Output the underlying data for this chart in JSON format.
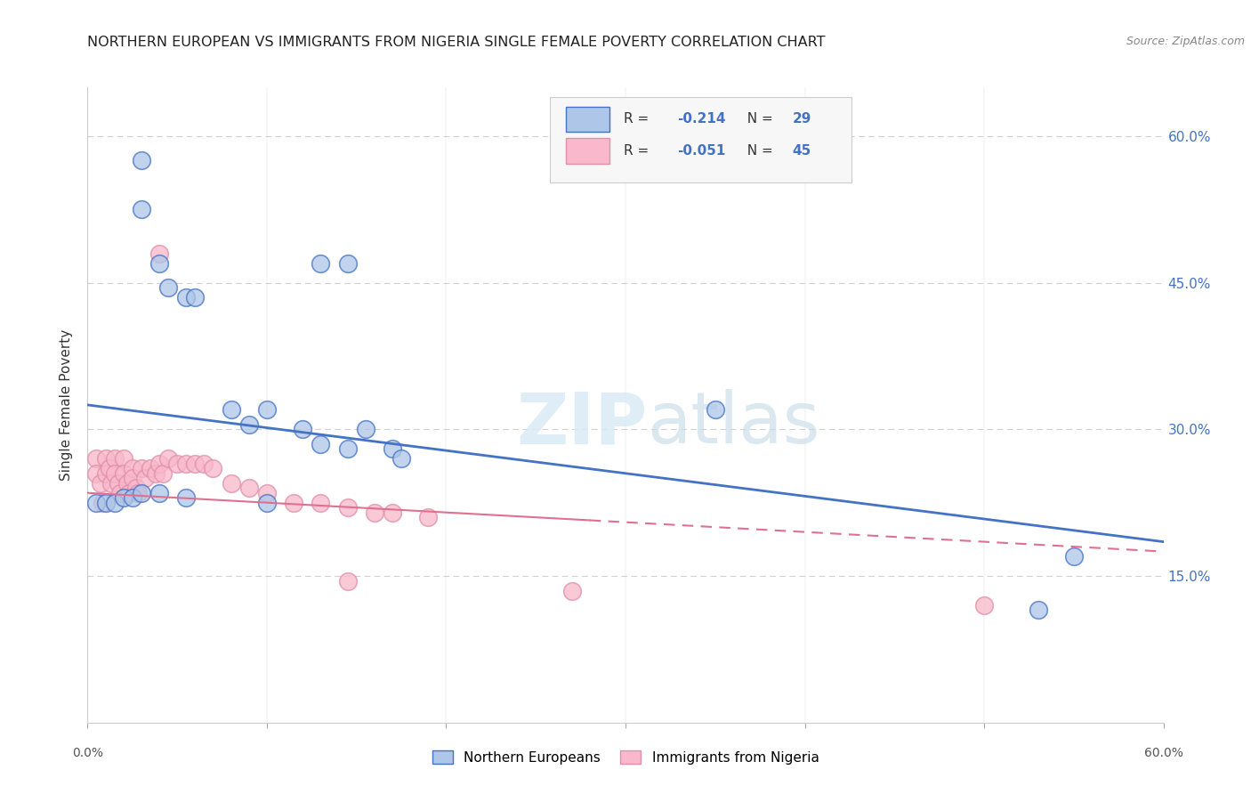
{
  "title": "NORTHERN EUROPEAN VS IMMIGRANTS FROM NIGERIA SINGLE FEMALE POVERTY CORRELATION CHART",
  "source": "Source: ZipAtlas.com",
  "ylabel": "Single Female Poverty",
  "legend_label1": "Northern Europeans",
  "legend_label2": "Immigrants from Nigeria",
  "r1": "-0.214",
  "n1": "29",
  "r2": "-0.051",
  "n2": "45",
  "color1": "#aec6e8",
  "color2": "#f9b8cb",
  "line_color1": "#4472c4",
  "line_color2": "#e07090",
  "right_ytick_labels": [
    "15.0%",
    "30.0%",
    "45.0%",
    "60.0%"
  ],
  "right_ytick_vals": [
    0.15,
    0.3,
    0.45,
    0.6
  ],
  "xlim": [
    0.0,
    0.6
  ],
  "ylim": [
    0.0,
    0.65
  ],
  "blue_points_x": [
    0.03,
    0.03,
    0.04,
    0.045,
    0.055,
    0.13,
    0.145,
    0.06,
    0.08,
    0.09,
    0.1,
    0.12,
    0.13,
    0.145,
    0.155,
    0.17,
    0.175,
    0.005,
    0.01,
    0.015,
    0.02,
    0.025,
    0.03,
    0.04,
    0.055,
    0.1,
    0.35,
    0.55,
    0.53
  ],
  "blue_points_y": [
    0.575,
    0.525,
    0.47,
    0.445,
    0.435,
    0.47,
    0.47,
    0.435,
    0.32,
    0.305,
    0.32,
    0.3,
    0.285,
    0.28,
    0.3,
    0.28,
    0.27,
    0.225,
    0.225,
    0.225,
    0.23,
    0.23,
    0.235,
    0.235,
    0.23,
    0.225,
    0.32,
    0.17,
    0.115
  ],
  "pink_points_x": [
    0.005,
    0.005,
    0.007,
    0.008,
    0.01,
    0.01,
    0.012,
    0.013,
    0.015,
    0.015,
    0.017,
    0.018,
    0.02,
    0.02,
    0.022,
    0.023,
    0.025,
    0.025,
    0.027,
    0.028,
    0.03,
    0.032,
    0.035,
    0.038,
    0.04,
    0.042,
    0.045,
    0.05,
    0.055,
    0.06,
    0.065,
    0.07,
    0.08,
    0.09,
    0.1,
    0.115,
    0.13,
    0.145,
    0.16,
    0.17,
    0.19,
    0.04,
    0.145,
    0.27,
    0.5
  ],
  "pink_points_y": [
    0.27,
    0.255,
    0.245,
    0.225,
    0.27,
    0.255,
    0.26,
    0.245,
    0.27,
    0.255,
    0.245,
    0.235,
    0.27,
    0.255,
    0.245,
    0.235,
    0.26,
    0.25,
    0.24,
    0.235,
    0.26,
    0.25,
    0.26,
    0.255,
    0.265,
    0.255,
    0.27,
    0.265,
    0.265,
    0.265,
    0.265,
    0.26,
    0.245,
    0.24,
    0.235,
    0.225,
    0.225,
    0.22,
    0.215,
    0.215,
    0.21,
    0.48,
    0.145,
    0.135,
    0.12
  ],
  "blue_line_x0": 0.0,
  "blue_line_y0": 0.325,
  "blue_line_x1": 0.6,
  "blue_line_y1": 0.185,
  "pink_line_x0": 0.0,
  "pink_line_y0": 0.235,
  "pink_line_x1": 0.6,
  "pink_line_y1": 0.175,
  "background_color": "#ffffff",
  "grid_color": "#d0d0d0"
}
